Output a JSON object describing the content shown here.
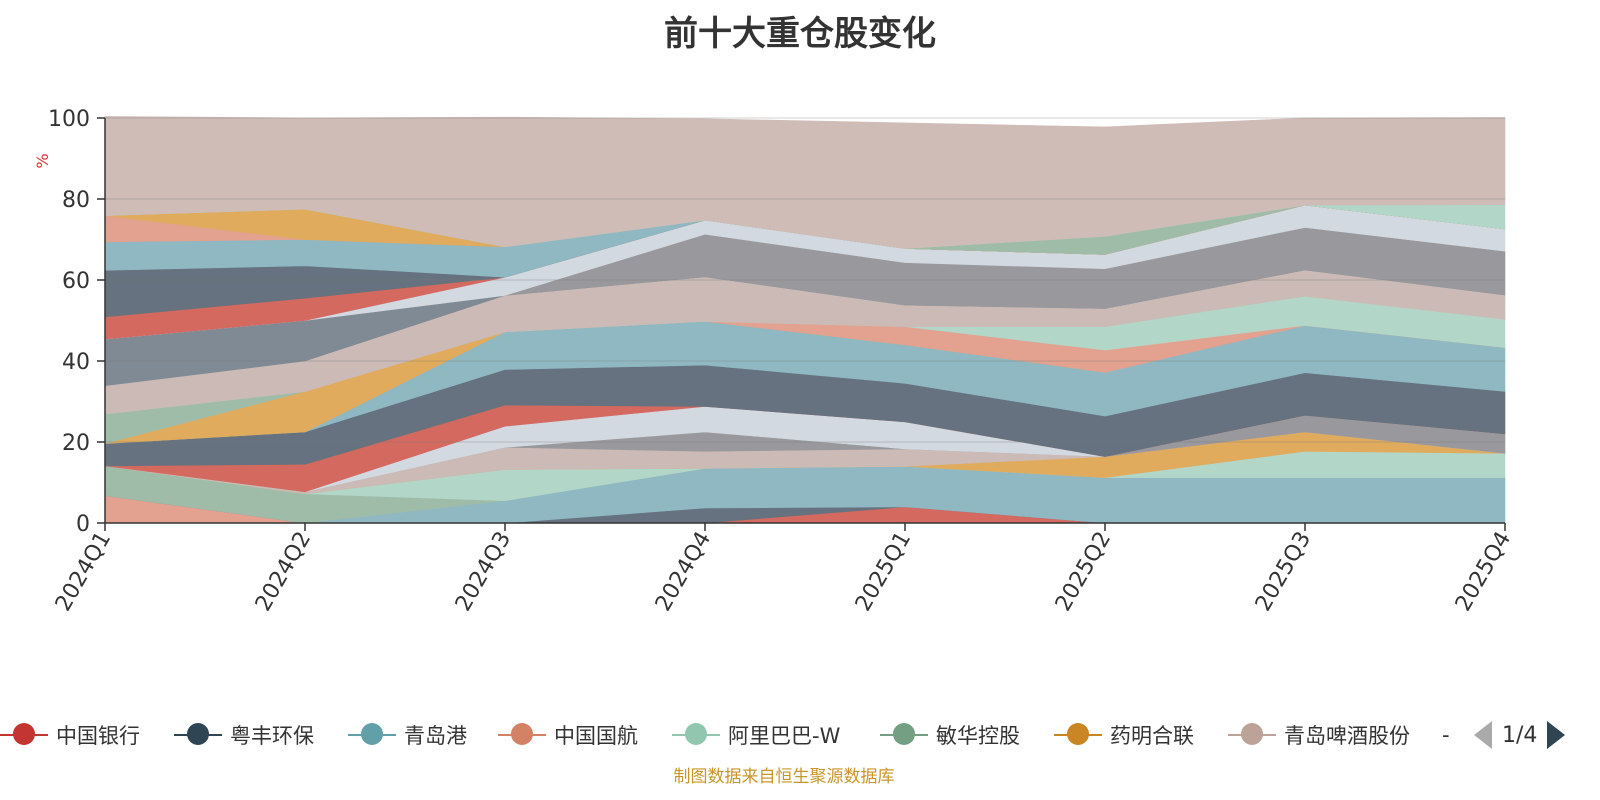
{
  "title": "前十大重仓股变化",
  "source_note": "制图数据来自恒生聚源数据库",
  "legend": {
    "more_indicator": "-",
    "page_text": "1/4"
  },
  "chart_data": {
    "type": "area",
    "stacked": true,
    "title": "前十大重仓股变化",
    "ylabel": "%",
    "ylim": [
      0,
      100
    ],
    "yticks": [
      "0",
      "20",
      "40",
      "60",
      "80",
      "100"
    ],
    "categories": [
      "2024Q1",
      "2024Q2",
      "2024Q3",
      "2024Q4",
      "2025Q1",
      "2025Q2",
      "2025Q3",
      "2025Q4"
    ],
    "grid": true,
    "legend_position": "bottom",
    "series": [
      {
        "name": "",
        "color": "#e3a18f",
        "values": [
          6.8,
          0,
          0,
          0,
          0,
          0,
          0,
          0
        ]
      },
      {
        "name": "",
        "color": "#d3695f",
        "values": [
          0,
          0,
          0,
          0,
          4,
          0,
          0,
          0
        ]
      },
      {
        "name": "",
        "color": "#66727f",
        "values": [
          0,
          0,
          0,
          3.7,
          0,
          0,
          0,
          0
        ]
      },
      {
        "name": "",
        "color": "#8fb8c3",
        "values": [
          0,
          0,
          5.5,
          9.8,
          10,
          11.2,
          11.2,
          11.2
        ]
      },
      {
        "name": "",
        "color": "#9fbca9",
        "values": [
          7.3,
          7.2,
          0,
          0,
          0,
          0,
          0,
          0
        ]
      },
      {
        "name": "",
        "color": "#b2d6c7",
        "values": [
          0,
          0,
          7.7,
          0,
          0,
          0,
          6.5,
          6
        ]
      },
      {
        "name": "",
        "color": "#e0ab5c",
        "values": [
          0,
          0,
          0,
          0,
          0,
          5.2,
          4.8,
          0
        ]
      },
      {
        "name": "",
        "color": "#cbbab6",
        "values": [
          0,
          0.5,
          5.5,
          4.2,
          4.3,
          0,
          0,
          0
        ]
      },
      {
        "name": "",
        "color": "#99999d",
        "values": [
          0,
          0,
          0,
          4.8,
          0,
          0,
          4.1,
          4.8
        ]
      },
      {
        "name": "",
        "color": "#d3d9e0",
        "values": [
          0,
          0,
          5.2,
          6.3,
          6.7,
          0,
          0,
          0
        ]
      },
      {
        "name": "",
        "color": "#d3695f",
        "values": [
          0,
          6.8,
          5.2,
          0,
          0,
          0,
          0,
          0
        ]
      },
      {
        "name": "",
        "color": "#66727f",
        "values": [
          5.5,
          8,
          8.8,
          10.2,
          9.5,
          10,
          10.5,
          10.5
        ]
      },
      {
        "name": "",
        "color": "#8fb8c3",
        "values": [
          0,
          0,
          9.3,
          10.8,
          9.5,
          10.8,
          11.7,
          10.8
        ]
      },
      {
        "name": "",
        "color": "#e0ab5c",
        "values": [
          0,
          10,
          0,
          0,
          0,
          0,
          0,
          0
        ]
      },
      {
        "name": "",
        "color": "#9fbca9",
        "values": [
          7.3,
          0,
          0,
          0,
          0,
          0,
          0,
          0
        ]
      },
      {
        "name": "",
        "color": "#e3a18f",
        "values": [
          0,
          0,
          0,
          0,
          4.5,
          5.5,
          0,
          0
        ]
      },
      {
        "name": "",
        "color": "#b2d6c7",
        "values": [
          0,
          0,
          0,
          0,
          0,
          5.8,
          7.2,
          7
        ]
      },
      {
        "name": "",
        "color": "#cbbab6",
        "values": [
          7,
          7.5,
          9,
          11,
          5.3,
          4.5,
          6.5,
          6
        ]
      },
      {
        "name": "",
        "color": "#7f8a94",
        "values": [
          11.5,
          10,
          0,
          0,
          0,
          0,
          0,
          0
        ]
      },
      {
        "name": "",
        "color": "#99999d",
        "values": [
          0,
          0,
          0,
          10.5,
          10.5,
          9.8,
          10.5,
          10.8
        ]
      },
      {
        "name": "",
        "color": "#d3d9e0",
        "values": [
          0,
          0,
          4.5,
          3.5,
          3.5,
          3.5,
          5.5,
          5.5
        ]
      },
      {
        "name": "",
        "color": "#d3695f",
        "values": [
          5.5,
          5.5,
          0,
          0,
          0,
          0,
          0,
          0
        ]
      },
      {
        "name": "",
        "color": "#66727f",
        "values": [
          11.5,
          8,
          0,
          0,
          0,
          0,
          0,
          0
        ]
      },
      {
        "name": "",
        "color": "#8fb8c3",
        "values": [
          7,
          6.5,
          7.5,
          0,
          0,
          0,
          0,
          0
        ]
      },
      {
        "name": "",
        "color": "#e3a18f",
        "values": [
          6.5,
          0,
          0,
          0,
          0,
          0,
          0,
          0
        ]
      },
      {
        "name": "",
        "color": "#e0ab5c",
        "values": [
          0,
          7.5,
          0,
          0,
          0,
          0,
          0,
          0
        ]
      },
      {
        "name": "",
        "color": "#9fbca9",
        "values": [
          0,
          0,
          0,
          0,
          0,
          4.5,
          0,
          0
        ]
      },
      {
        "name": "",
        "color": "#b2d6c7",
        "values": [
          0,
          0,
          0,
          0,
          0,
          0,
          0,
          6
        ]
      },
      {
        "name": "",
        "color": "#cfbcb6",
        "values": [
          24.5,
          22.5,
          32,
          25,
          31,
          27,
          21.5,
          21.5
        ]
      }
    ],
    "legend_entries": [
      {
        "name": "中国银行",
        "color": "#c23531"
      },
      {
        "name": "粤丰环保",
        "color": "#2f4554"
      },
      {
        "name": "青岛港",
        "color": "#61a0a8"
      },
      {
        "name": "中国国航",
        "color": "#d48265"
      },
      {
        "name": "阿里巴巴-W",
        "color": "#91c7ae"
      },
      {
        "name": "敏华控股",
        "color": "#749f83"
      },
      {
        "name": "药明合联",
        "color": "#ca8622"
      },
      {
        "name": "青岛啤酒股份",
        "color": "#bda29a"
      }
    ]
  }
}
